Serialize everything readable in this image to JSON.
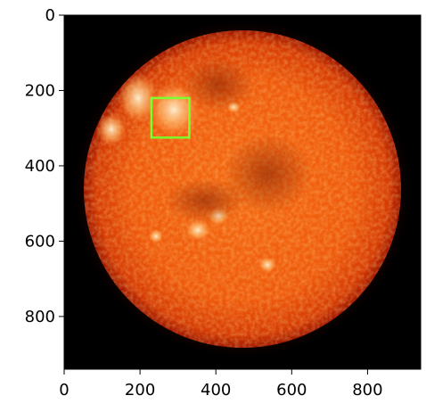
{
  "figure": {
    "background_color": "#ffffff",
    "image_background_color": "#000000"
  },
  "image": {
    "description_colors": {
      "sun_core": "#f2620f",
      "sun_bright": "#ffb05a",
      "sun_edge": "#b82200",
      "corona": "#5a0a00"
    }
  },
  "axes": {
    "x_ticks": [
      {
        "value": 0,
        "label": "0"
      },
      {
        "value": 200,
        "label": "200"
      },
      {
        "value": 400,
        "label": "400"
      },
      {
        "value": 600,
        "label": "600"
      },
      {
        "value": 800,
        "label": "800"
      }
    ],
    "y_ticks": [
      {
        "value": 0,
        "label": "0"
      },
      {
        "value": 200,
        "label": "200"
      },
      {
        "value": 400,
        "label": "400"
      },
      {
        "value": 600,
        "label": "600"
      },
      {
        "value": 800,
        "label": "800"
      }
    ],
    "xlim": [
      0,
      940
    ],
    "ylim": [
      0,
      940
    ]
  },
  "annotation": {
    "box_color": "#7cff2c",
    "x": [
      230,
      330
    ],
    "y": [
      220,
      325
    ]
  }
}
